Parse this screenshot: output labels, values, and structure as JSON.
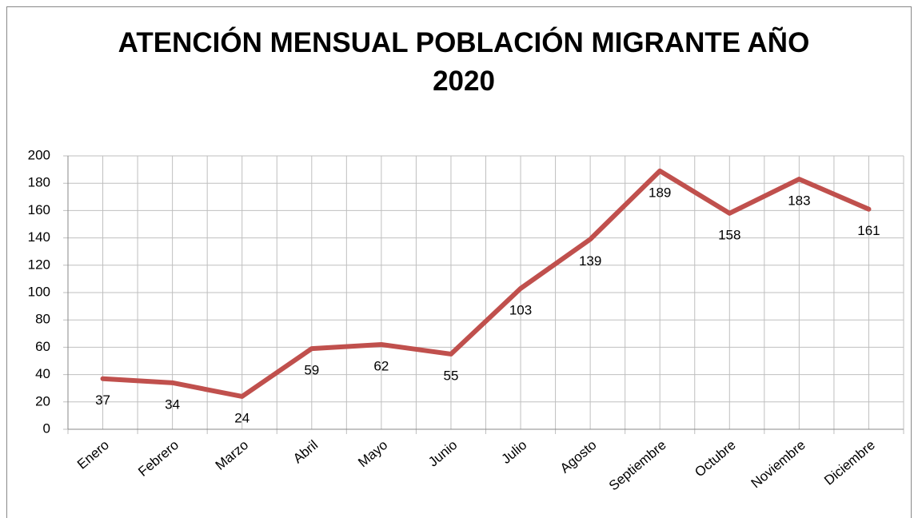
{
  "chart_data": {
    "type": "line",
    "title": "ATENCIÓN MENSUAL POBLACIÓN MIGRANTE AÑO 2020",
    "categories": [
      "Enero",
      "Febrero",
      "Marzo",
      "Abril",
      "Mayo",
      "Junio",
      "Julio",
      "Agosto",
      "Septiembre",
      "Octubre",
      "Noviembre",
      "Diciembre"
    ],
    "values": [
      37,
      34,
      24,
      59,
      62,
      55,
      103,
      139,
      189,
      158,
      183,
      161
    ],
    "color": "#c0504d",
    "ylim": [
      0,
      200
    ],
    "yticks": [
      0,
      20,
      40,
      60,
      80,
      100,
      120,
      140,
      160,
      180,
      200
    ],
    "grid": true
  }
}
